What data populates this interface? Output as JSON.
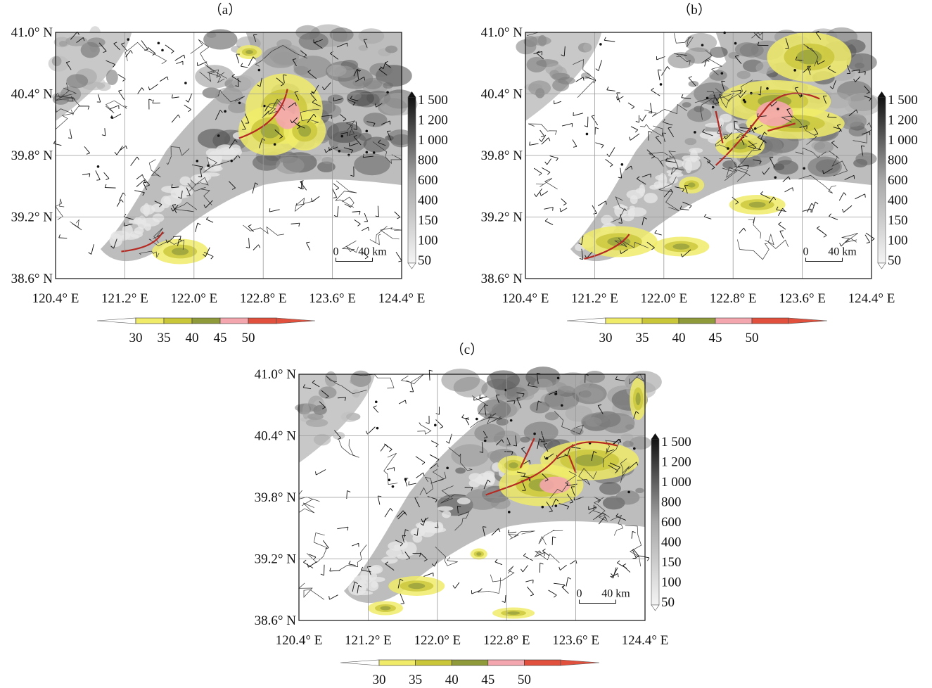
{
  "panels": [
    {
      "id": "a",
      "title": "（a）",
      "lon_ticks": [
        "120.4° E",
        "121.2° E",
        "122.0° E",
        "122.8° E",
        "123.6° E",
        "124.4° E"
      ],
      "lat_ticks": [
        "41.0° N",
        "40.4° N",
        "39.8° N",
        "39.2° N",
        "38.6° N"
      ],
      "scale_bar": {
        "start": "0",
        "end": "40 km"
      },
      "terrain_legend": [
        "1 500",
        "1 200",
        "1 000",
        "800",
        "600",
        "400",
        "150",
        "100",
        "50"
      ],
      "reflectivity_legend": [
        "30",
        "35",
        "40",
        "45",
        "50"
      ]
    },
    {
      "id": "b",
      "title": "（b）",
      "lon_ticks": [
        "120.4° E",
        "121.2° E",
        "122.0° E",
        "122.8° E",
        "123.6° E",
        "124.4° E"
      ],
      "lat_ticks": [
        "41.0° N",
        "40.4° N",
        "39.8° N",
        "39.2° N",
        "38.6° N"
      ],
      "scale_bar": {
        "start": "0",
        "end": "40 km"
      },
      "terrain_legend": [
        "1 500",
        "1 200",
        "1 000",
        "800",
        "600",
        "400",
        "150",
        "100",
        "50"
      ],
      "reflectivity_legend": [
        "30",
        "35",
        "40",
        "45",
        "50"
      ]
    },
    {
      "id": "c",
      "title": "（c）",
      "lon_ticks": [
        "120.4° E",
        "121.2° E",
        "122.0° E",
        "122.8° E",
        "123.6° E",
        "124.4° E"
      ],
      "lat_ticks": [
        "41.0° N",
        "40.4° N",
        "39.8° N",
        "39.2° N",
        "38.6° N"
      ],
      "scale_bar": {
        "start": "0",
        "end": "40 km"
      },
      "terrain_legend": [
        "1 500",
        "1 200",
        "1 000",
        "800",
        "600",
        "400",
        "150",
        "100",
        "50"
      ],
      "reflectivity_legend": [
        "30",
        "35",
        "40",
        "45",
        "50"
      ]
    }
  ],
  "colors": {
    "refl_30": "#f0ec6a",
    "refl_35": "#c9c63a",
    "refl_40": "#8f9a3a",
    "refl_45": "#f4a6ae",
    "refl_50": "#e0503c",
    "line_red": "#b52a22",
    "terrain_light": "#e6e6e6",
    "terrain_dark": "#2a2a2a"
  }
}
